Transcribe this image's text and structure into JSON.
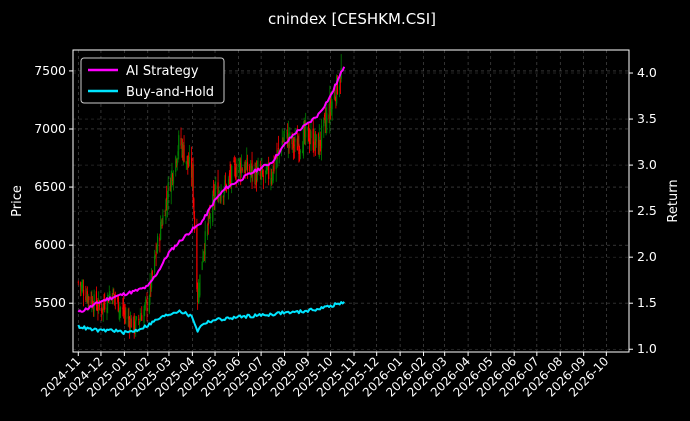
{
  "chart_data": {
    "type": "line",
    "title": "cnindex [CESHKM.CSI]",
    "ylabel": "Price",
    "y2label": "Return",
    "xlim": [
      "2024-10-25",
      "2026-10-31"
    ],
    "ylim": [
      5080,
      7680
    ],
    "y2lim": [
      0.97,
      4.25
    ],
    "grid": true,
    "legend_position": "upper-left",
    "x_ticks": [
      "2024-11",
      "2024-12",
      "2025-01",
      "2025-02",
      "2025-03",
      "2025-04",
      "2025-05",
      "2025-06",
      "2025-07",
      "2025-08",
      "2025-09",
      "2025-10",
      "2025-11",
      "2025-12",
      "2026-01",
      "2026-02",
      "2026-03",
      "2026-04",
      "2026-05",
      "2026-06",
      "2026-07",
      "2026-08",
      "2026-09",
      "2026-10"
    ],
    "y_ticks": [
      5500,
      6000,
      6500,
      7000,
      7500
    ],
    "y2_ticks": [
      1.0,
      1.5,
      2.0,
      2.5,
      3.0,
      3.5,
      4.0
    ],
    "colors": {
      "ai_strategy": "#ff00ff",
      "buy_and_hold": "#00e5ff",
      "up_candle": "#008000",
      "down_candle": "#ff0000",
      "background": "#000000"
    },
    "price_series": {
      "name": "",
      "x": [
        "2024-11-01",
        "2024-11-15",
        "2024-12-01",
        "2024-12-15",
        "2025-01-01",
        "2025-01-15",
        "2025-02-01",
        "2025-02-15",
        "2025-03-01",
        "2025-03-15",
        "2025-04-01",
        "2025-04-08",
        "2025-04-15",
        "2025-05-01",
        "2025-05-15",
        "2025-06-01",
        "2025-06-15",
        "2025-07-01",
        "2025-07-15",
        "2025-08-01",
        "2025-08-15",
        "2025-09-01",
        "2025-09-15",
        "2025-10-01",
        "2025-10-15"
      ],
      "close": [
        5680,
        5550,
        5450,
        5600,
        5400,
        5300,
        5500,
        6050,
        6500,
        6900,
        6600,
        5550,
        5950,
        6450,
        6500,
        6700,
        6650,
        6580,
        6620,
        6950,
        6850,
        6950,
        6850,
        7200,
        7480
      ]
    },
    "series": [
      {
        "name": "AI Strategy",
        "axis": "right",
        "x": [
          "2024-11-01",
          "2024-11-15",
          "2024-12-01",
          "2024-12-15",
          "2025-01-01",
          "2025-01-15",
          "2025-02-01",
          "2025-02-15",
          "2025-03-01",
          "2025-03-15",
          "2025-04-01",
          "2025-04-08",
          "2025-04-15",
          "2025-05-01",
          "2025-05-15",
          "2025-06-01",
          "2025-06-15",
          "2025-07-01",
          "2025-07-15",
          "2025-08-01",
          "2025-08-15",
          "2025-09-01",
          "2025-09-15",
          "2025-10-01",
          "2025-10-15",
          "2025-10-20"
        ],
        "values": [
          1.4,
          1.45,
          1.52,
          1.56,
          1.6,
          1.63,
          1.68,
          1.85,
          2.05,
          2.17,
          2.3,
          2.34,
          2.4,
          2.62,
          2.75,
          2.83,
          2.9,
          2.97,
          3.03,
          3.22,
          3.35,
          3.45,
          3.55,
          3.75,
          4.0,
          4.1
        ]
      },
      {
        "name": "Buy-and-Hold",
        "axis": "right",
        "x": [
          "2024-11-01",
          "2024-11-15",
          "2024-12-01",
          "2024-12-15",
          "2025-01-01",
          "2025-01-15",
          "2025-02-01",
          "2025-02-15",
          "2025-03-01",
          "2025-03-15",
          "2025-04-01",
          "2025-04-08",
          "2025-04-15",
          "2025-05-01",
          "2025-05-15",
          "2025-06-01",
          "2025-06-15",
          "2025-07-01",
          "2025-07-15",
          "2025-08-01",
          "2025-08-15",
          "2025-09-01",
          "2025-09-15",
          "2025-10-01",
          "2025-10-15",
          "2025-10-20"
        ],
        "values": [
          1.25,
          1.22,
          1.2,
          1.21,
          1.18,
          1.2,
          1.26,
          1.33,
          1.38,
          1.42,
          1.35,
          1.2,
          1.28,
          1.32,
          1.33,
          1.35,
          1.36,
          1.37,
          1.38,
          1.4,
          1.4,
          1.42,
          1.44,
          1.47,
          1.5,
          1.51
        ]
      }
    ]
  }
}
